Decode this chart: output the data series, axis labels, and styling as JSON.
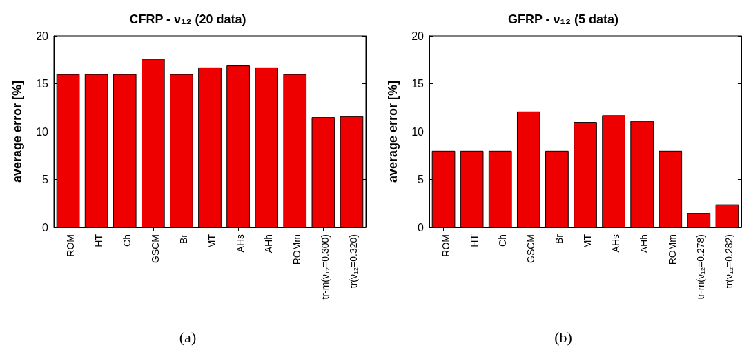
{
  "chart_data": [
    {
      "type": "bar",
      "title": "CFRP - ν₁₂ (20 data)",
      "ylabel": "average error [%]",
      "categories": [
        "ROM",
        "HT",
        "Ch",
        "GSCM",
        "Br",
        "MT",
        "AHs",
        "AHh",
        "ROMm",
        "tr-m(ν₁₂=0.300)",
        "tr(ν₁₂=0.320)"
      ],
      "values": [
        16,
        16,
        16,
        17.6,
        16,
        16.7,
        16.9,
        16.7,
        16,
        11.5,
        11.6
      ],
      "color": "#ee0000",
      "ylim": [
        0,
        20
      ],
      "yticks": [
        0,
        5,
        10,
        15,
        20
      ],
      "grid": false,
      "annotations": [
        "(a)"
      ]
    },
    {
      "type": "bar",
      "title": "GFRP - ν₁₂ (5 data)",
      "ylabel": "average error [%]",
      "categories": [
        "ROM",
        "HT",
        "Ch",
        "GSCM",
        "Br",
        "MT",
        "AHs",
        "AHh",
        "ROMm",
        "tr-m(ν₁₂=0.278)",
        "tr(ν₁₂=0.282)"
      ],
      "values": [
        8,
        8,
        8,
        12.1,
        8,
        11,
        11.7,
        11.1,
        8,
        1.5,
        2.4
      ],
      "color": "#ee0000",
      "ylim": [
        0,
        20
      ],
      "yticks": [
        0,
        5,
        10,
        15,
        20
      ],
      "grid": false,
      "annotations": [
        "(b)"
      ]
    }
  ]
}
